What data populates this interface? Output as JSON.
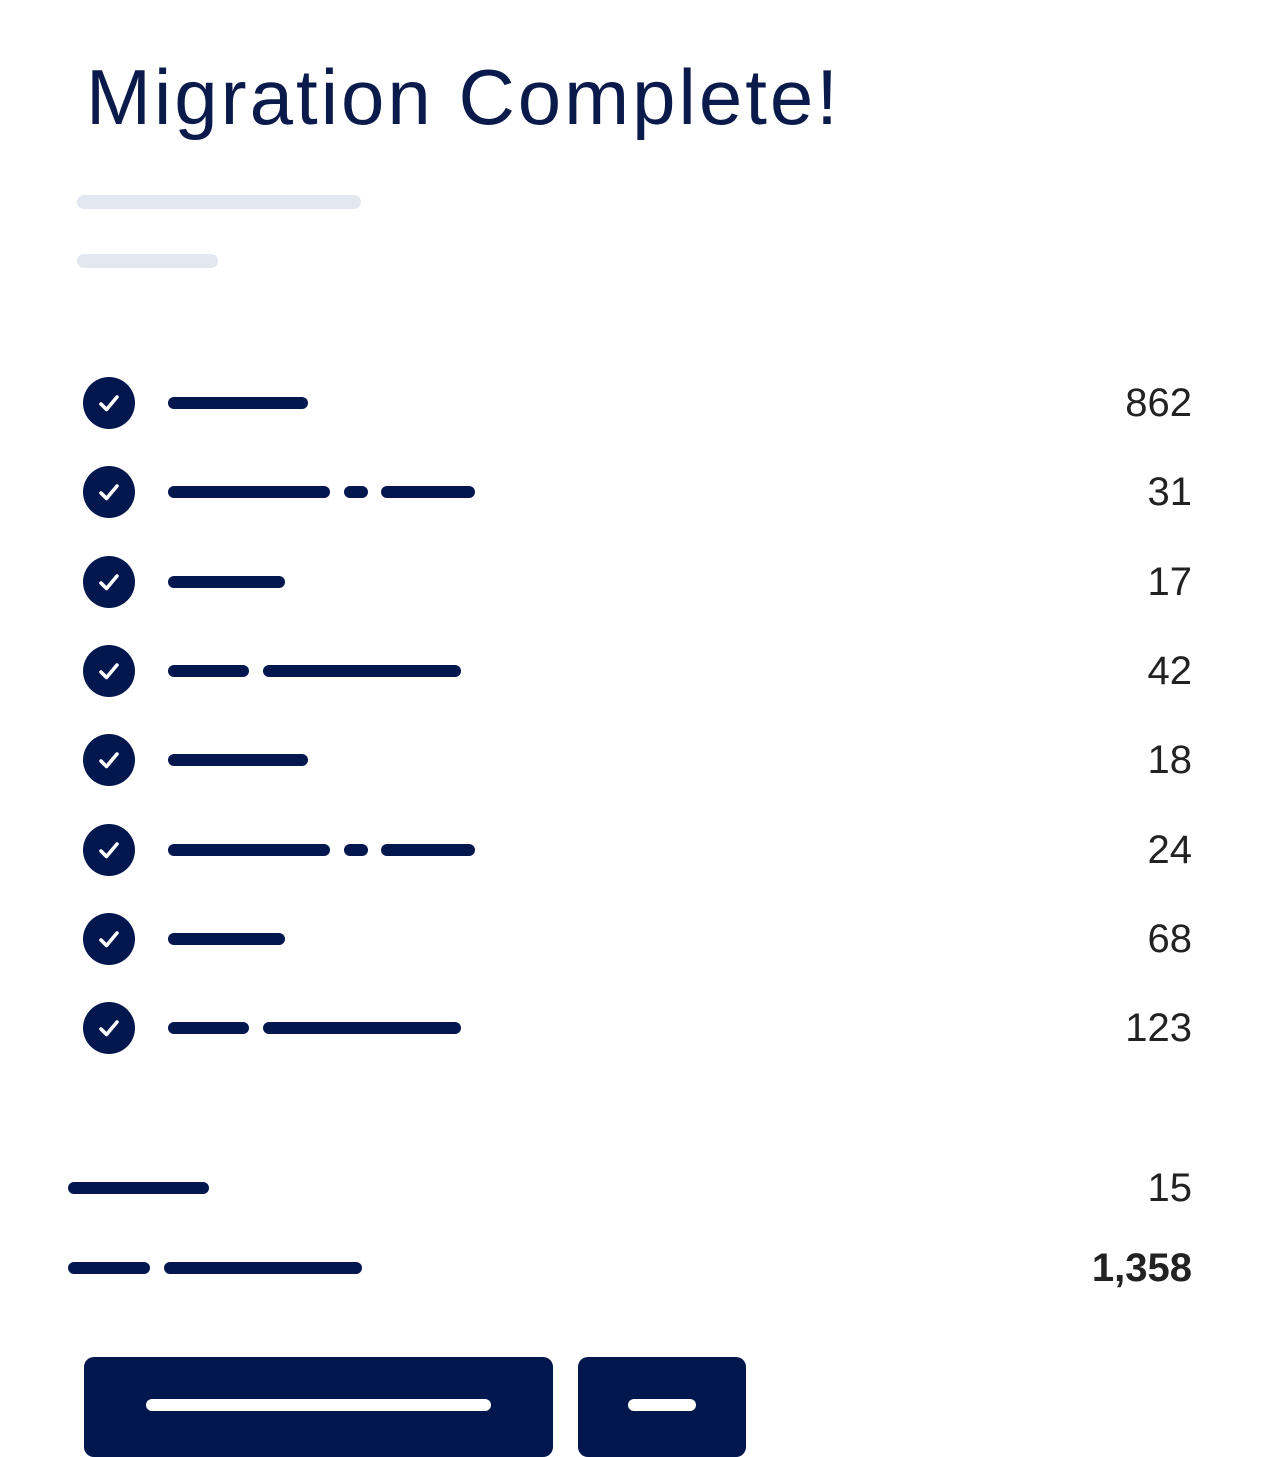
{
  "title": "Migration Complete!",
  "colors": {
    "accent": "#03174f",
    "skeleton": "#e3e7f0",
    "text": "#222222"
  },
  "items": [
    {
      "icon": "check-circle-icon",
      "value": "862"
    },
    {
      "icon": "check-circle-icon",
      "value": "31"
    },
    {
      "icon": "check-circle-icon",
      "value": "17"
    },
    {
      "icon": "check-circle-icon",
      "value": "42"
    },
    {
      "icon": "check-circle-icon",
      "value": "18"
    },
    {
      "icon": "check-circle-icon",
      "value": "24"
    },
    {
      "icon": "check-circle-icon",
      "value": "68"
    },
    {
      "icon": "check-circle-icon",
      "value": "123"
    }
  ],
  "summary": [
    {
      "value": "15"
    },
    {
      "value": "1,358"
    }
  ]
}
